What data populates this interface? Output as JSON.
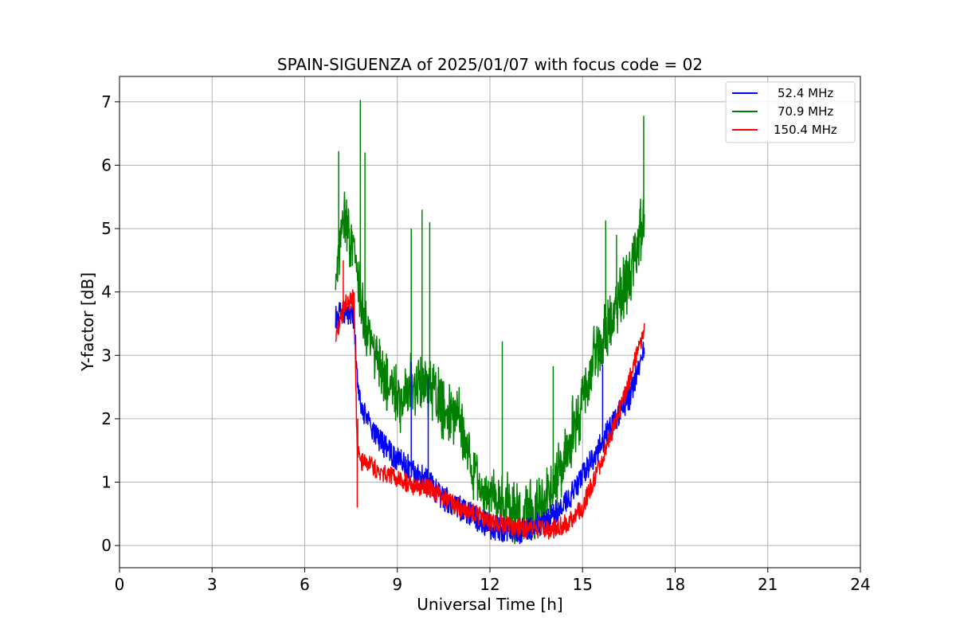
{
  "chart_data": {
    "type": "line",
    "title": "SPAIN-SIGUENZA of 2025/01/07 with focus code = 02",
    "xlabel": "Universal Time [h]",
    "ylabel": "Y-factor [dB]",
    "xlim": [
      0,
      24
    ],
    "ylim": [
      -0.35,
      7.4
    ],
    "xticks": [
      0,
      3,
      6,
      9,
      12,
      15,
      18,
      21,
      24
    ],
    "yticks": [
      0,
      1,
      2,
      3,
      4,
      5,
      6,
      7
    ],
    "grid": true,
    "legend_position": "top-right",
    "series": [
      {
        "name": "52.4 MHz",
        "color": "#0000ff",
        "noise": 0.2,
        "x": [
          7.0,
          7.3,
          7.6,
          7.7,
          7.8,
          8.0,
          8.5,
          9.0,
          9.5,
          10.0,
          10.5,
          11.0,
          11.5,
          12.0,
          12.5,
          13.0,
          13.5,
          14.0,
          14.5,
          15.0,
          15.5,
          16.0,
          16.5,
          17.0
        ],
        "y": [
          3.6,
          3.7,
          3.6,
          2.6,
          2.3,
          2.0,
          1.6,
          1.35,
          1.2,
          1.0,
          0.75,
          0.6,
          0.45,
          0.3,
          0.25,
          0.22,
          0.3,
          0.45,
          0.7,
          1.1,
          1.5,
          1.95,
          2.3,
          3.1
        ]
      },
      {
        "name": "70.9 MHz",
        "color": "#008000",
        "noise": 0.6,
        "x": [
          7.0,
          7.3,
          7.6,
          7.8,
          8.0,
          8.5,
          9.0,
          9.5,
          10.0,
          10.5,
          11.0,
          11.5,
          12.0,
          12.5,
          13.0,
          13.5,
          14.0,
          14.5,
          15.0,
          15.5,
          16.0,
          16.5,
          17.0
        ],
        "y": [
          4.2,
          5.2,
          4.6,
          3.8,
          3.4,
          2.7,
          2.3,
          2.6,
          2.5,
          2.2,
          2.0,
          1.1,
          0.8,
          0.6,
          0.45,
          0.5,
          0.9,
          1.5,
          2.3,
          3.1,
          3.6,
          4.2,
          5.2
        ]
      },
      {
        "name": "150.4 MHz",
        "color": "#ff0000",
        "noise": 0.15,
        "x": [
          7.0,
          7.3,
          7.6,
          7.7,
          7.8,
          8.0,
          8.5,
          9.0,
          9.5,
          10.0,
          10.5,
          11.0,
          11.5,
          12.0,
          12.5,
          13.0,
          13.5,
          14.0,
          14.5,
          15.0,
          15.5,
          16.0,
          16.5,
          17.0
        ],
        "y": [
          3.3,
          3.8,
          3.9,
          1.5,
          1.3,
          1.3,
          1.15,
          1.05,
          0.95,
          0.9,
          0.75,
          0.6,
          0.5,
          0.38,
          0.32,
          0.28,
          0.25,
          0.25,
          0.35,
          0.6,
          1.2,
          1.85,
          2.6,
          3.4
        ]
      }
    ],
    "spikes": [
      {
        "series": 1,
        "x": 7.8,
        "y": 7.03
      },
      {
        "series": 1,
        "x": 7.1,
        "y": 6.22
      },
      {
        "series": 1,
        "x": 7.95,
        "y": 6.2
      },
      {
        "series": 1,
        "x": 16.98,
        "y": 6.78
      },
      {
        "series": 1,
        "x": 9.8,
        "y": 5.3
      },
      {
        "series": 1,
        "x": 10.05,
        "y": 5.1
      },
      {
        "series": 1,
        "x": 9.45,
        "y": 5.0
      },
      {
        "series": 1,
        "x": 15.75,
        "y": 5.13
      },
      {
        "series": 1,
        "x": 16.1,
        "y": 4.9
      },
      {
        "series": 1,
        "x": 12.4,
        "y": 3.22
      },
      {
        "series": 1,
        "x": 14.05,
        "y": 2.83
      },
      {
        "series": 0,
        "x": 9.45,
        "y": 2.9
      },
      {
        "series": 0,
        "x": 10.0,
        "y": 2.65
      },
      {
        "series": 0,
        "x": 15.65,
        "y": 2.85
      },
      {
        "series": 2,
        "x": 7.25,
        "y": 4.5
      },
      {
        "series": 2,
        "x": 7.7,
        "y": 0.6
      },
      {
        "series": 2,
        "x": 7.72,
        "y": 2.0
      }
    ]
  }
}
